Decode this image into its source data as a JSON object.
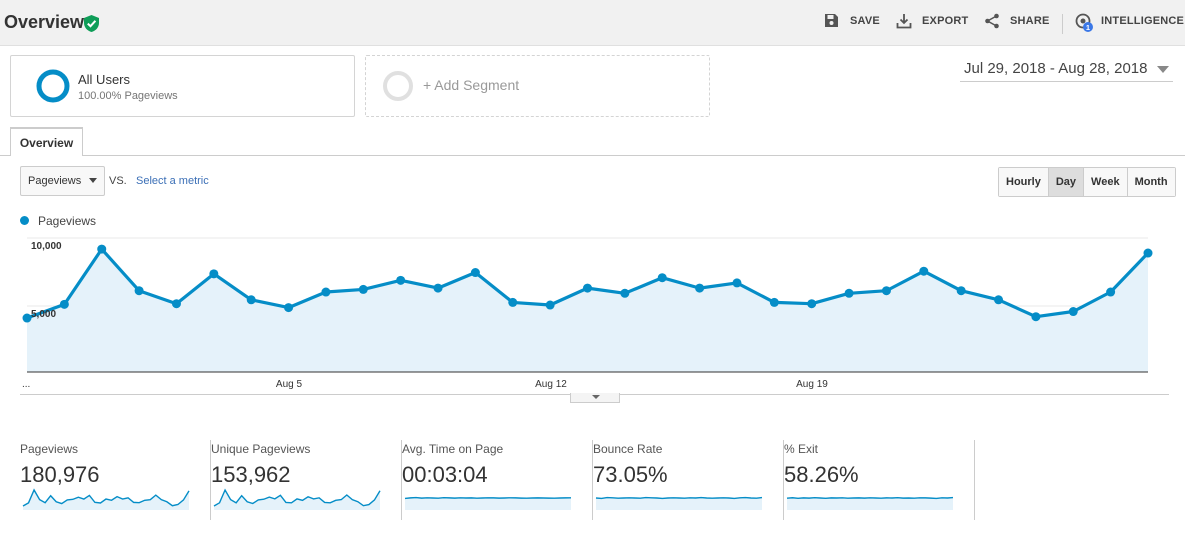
{
  "header": {
    "title": "Overview",
    "actions": [
      {
        "label": "SAVE",
        "icon": "save-icon"
      },
      {
        "label": "EXPORT",
        "icon": "export-icon"
      },
      {
        "label": "SHARE",
        "icon": "share-icon"
      },
      {
        "label": "INTELLIGENCE",
        "icon": "intelligence-icon",
        "badge": "1"
      }
    ]
  },
  "segments": {
    "active": {
      "name": "All Users",
      "sub": "100.00% Pageviews"
    },
    "add": {
      "label": "+ Add Segment"
    }
  },
  "date_range": "Jul 29, 2018 - Aug 28, 2018",
  "tabs": [
    {
      "label": "Overview"
    }
  ],
  "metric_bar": {
    "metric": "Pageviews",
    "vs": "VS.",
    "select_metric": "Select a metric",
    "granularity": [
      "Hourly",
      "Day",
      "Week",
      "Month"
    ],
    "granularity_active": "Day"
  },
  "colors": {
    "series": "#058dc7",
    "fill": "#e5f2fa"
  },
  "chart_data": {
    "type": "area",
    "series": [
      {
        "name": "Pageviews",
        "values": [
          4000,
          5050,
          9300,
          6100,
          5100,
          7400,
          5400,
          4800,
          6000,
          6200,
          6900,
          6300,
          7500,
          5200,
          5000,
          6300,
          5900,
          7100,
          6300,
          6700,
          5200,
          5100,
          5900,
          6100,
          7600,
          6100,
          5400,
          4100,
          4500,
          6000,
          9000
        ]
      }
    ],
    "x_tick_labels": [
      "...",
      "Aug 5",
      "Aug 12",
      "Aug 19"
    ],
    "y_tick_labels": [
      "5,000",
      "10,000"
    ],
    "ylim": [
      0,
      10000
    ],
    "grid": true,
    "legend": "top-left"
  },
  "summary": [
    {
      "label": "Pageviews",
      "value": "180,976",
      "trend": [
        4000,
        5050,
        9300,
        6100,
        5100,
        7400,
        5400,
        4800,
        6000,
        6200,
        6900,
        6300,
        7500,
        5200,
        5000,
        6300,
        5900,
        7100,
        6300,
        6700,
        5200,
        5100,
        5900,
        6100,
        7600,
        6100,
        5400,
        4100,
        4500,
        6000,
        9000
      ]
    },
    {
      "label": "Unique Pageviews",
      "value": "153,962",
      "trend": [
        3400,
        4300,
        7900,
        5200,
        4300,
        6300,
        4600,
        4100,
        5100,
        5300,
        5900,
        5400,
        6400,
        4400,
        4300,
        5400,
        5000,
        6000,
        5400,
        5700,
        4400,
        4300,
        5000,
        5200,
        6500,
        5200,
        4600,
        3500,
        3800,
        5100,
        7700
      ]
    },
    {
      "label": "Avg. Time on Page",
      "value": "00:03:04",
      "trend": [
        180,
        185,
        188,
        183,
        186,
        184,
        182,
        187,
        185,
        183,
        186,
        184,
        185,
        182,
        184,
        186,
        185,
        183,
        184,
        186,
        185,
        183,
        182,
        184,
        185,
        184,
        183,
        182,
        184,
        185,
        186
      ]
    },
    {
      "label": "Bounce Rate",
      "value": "73.05%",
      "trend": [
        73,
        72.8,
        73.2,
        73.1,
        72.9,
        73,
        73.1,
        73,
        72.9,
        73.2,
        73.1,
        73,
        72.8,
        73,
        73.1,
        73,
        72.9,
        73.1,
        73,
        73.2,
        73,
        72.9,
        73,
        73.1,
        73,
        72.8,
        73.1,
        73.2,
        73,
        72.9,
        73.2
      ]
    },
    {
      "label": "% Exit",
      "value": "58.26%",
      "trend": [
        58,
        58.4,
        57.9,
        58.3,
        58.1,
        58.5,
        58.2,
        57.9,
        58.3,
        58.2,
        58.4,
        58,
        58.2,
        58.3,
        58.1,
        58.4,
        58.2,
        58,
        58.3,
        58.2,
        58.5,
        58.1,
        58.2,
        58,
        58.4,
        58.3,
        58.1,
        57.8,
        58.4,
        58.2,
        58.6
      ]
    }
  ]
}
